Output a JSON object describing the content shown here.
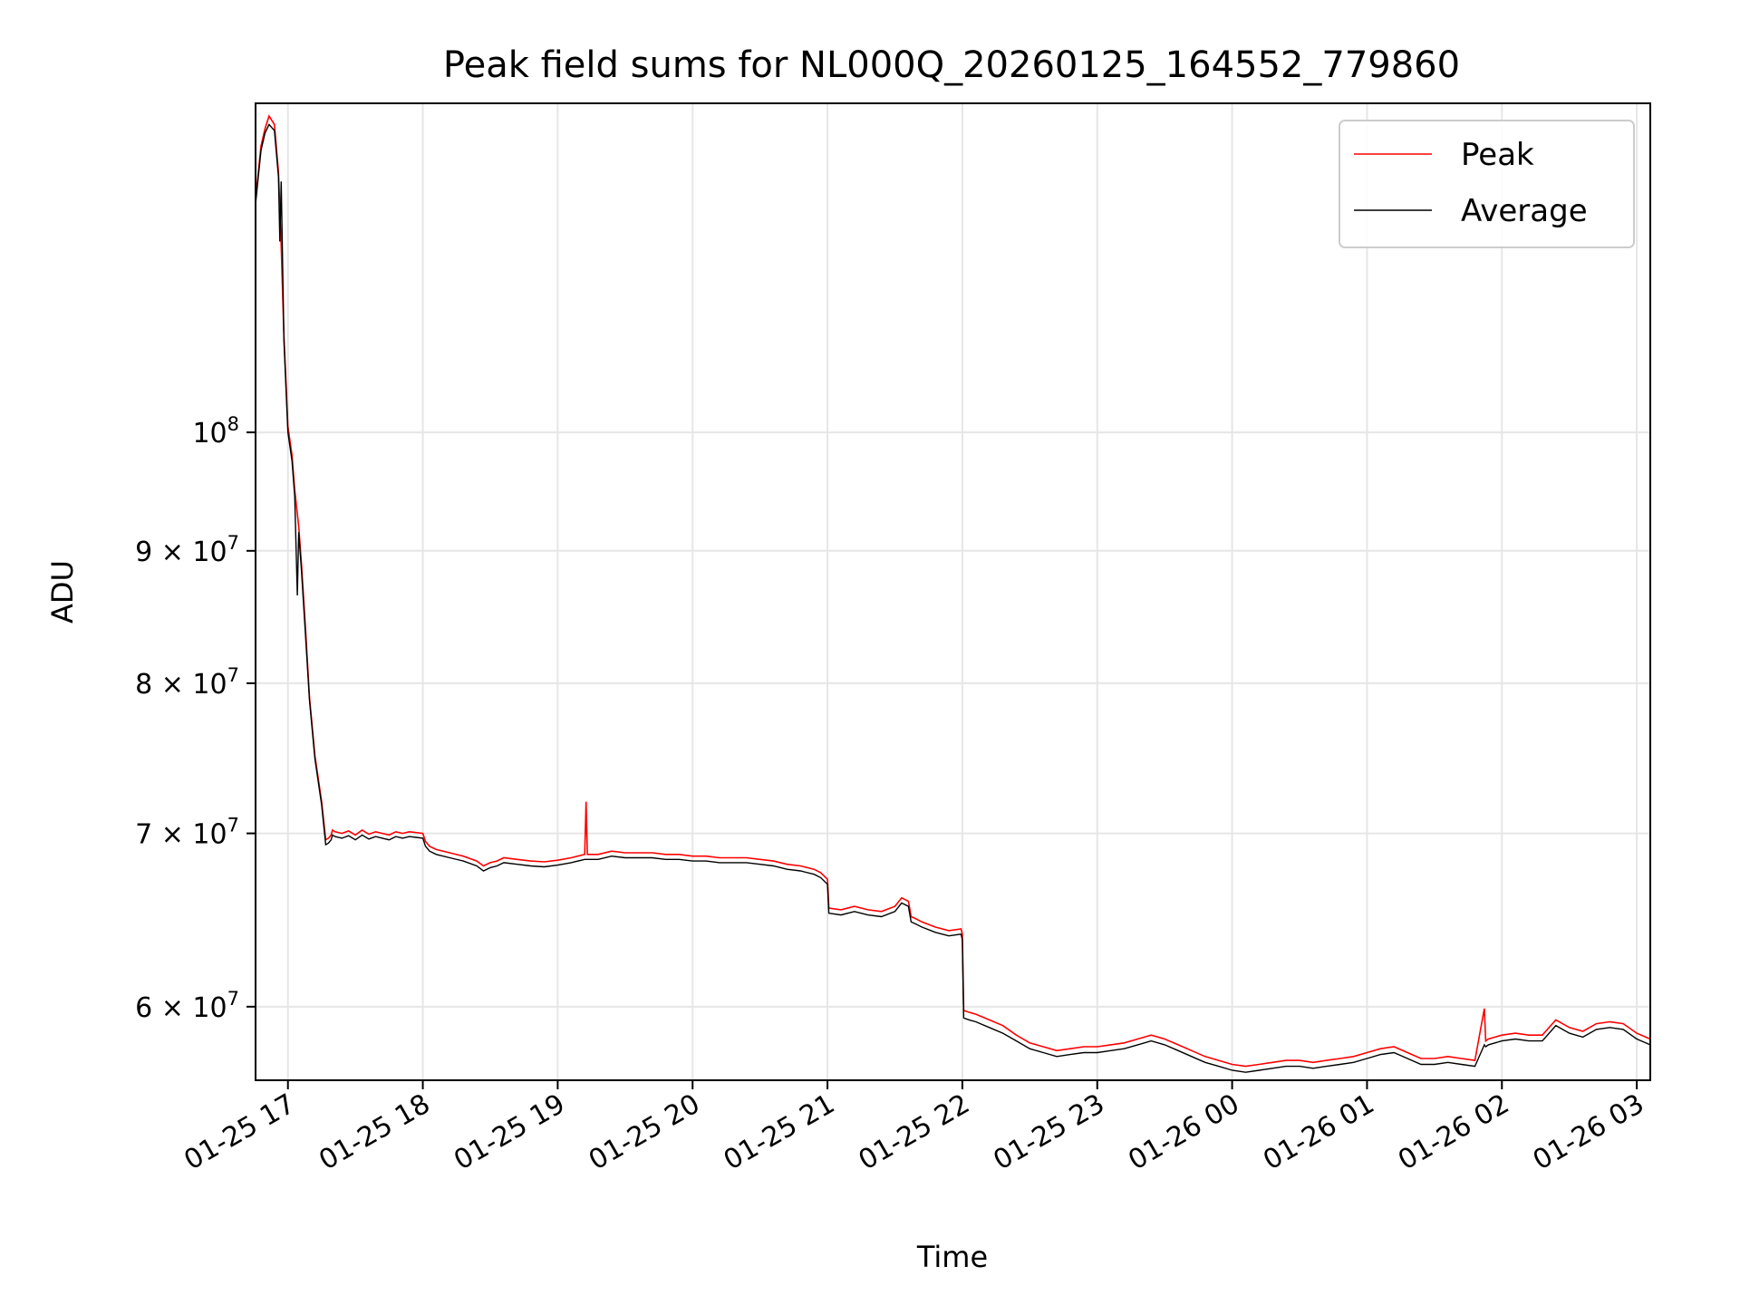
{
  "chart_data": {
    "type": "line",
    "title": "Peak field sums for NL000Q_20260125_164552_779860",
    "xlabel": "Time",
    "ylabel": "ADU",
    "yscale": "log",
    "grid": true,
    "legend_position": "upper right",
    "xlim": [
      16.76,
      27.1
    ],
    "ylim": [
      56200000,
      134000000
    ],
    "x_ticks": [
      {
        "value": 17,
        "label": "01-25 17"
      },
      {
        "value": 18,
        "label": "01-25 18"
      },
      {
        "value": 19,
        "label": "01-25 19"
      },
      {
        "value": 20,
        "label": "01-25 20"
      },
      {
        "value": 21,
        "label": "01-25 21"
      },
      {
        "value": 22,
        "label": "01-25 22"
      },
      {
        "value": 23,
        "label": "01-25 23"
      },
      {
        "value": 24,
        "label": "01-26 00"
      },
      {
        "value": 25,
        "label": "01-26 01"
      },
      {
        "value": 26,
        "label": "01-26 02"
      },
      {
        "value": 27,
        "label": "01-26 03"
      }
    ],
    "y_ticks": [
      {
        "value": 100000000,
        "base": "10",
        "exp": "8"
      },
      {
        "value": 90000000,
        "base": "9 × 10",
        "exp": "7"
      },
      {
        "value": 80000000,
        "base": "8 × 10",
        "exp": "7"
      },
      {
        "value": 70000000,
        "base": "7 × 10",
        "exp": "7"
      },
      {
        "value": 60000000,
        "base": "6 × 10",
        "exp": "7"
      }
    ],
    "series": [
      {
        "name": "Peak",
        "color": "#ff0000",
        "x": [
          16.76,
          16.78,
          16.8,
          16.83,
          16.86,
          16.9,
          16.93,
          16.95,
          16.97,
          17.0,
          17.03,
          17.05,
          17.08,
          17.1,
          17.13,
          17.16,
          17.2,
          17.25,
          17.28,
          17.3,
          17.32,
          17.33,
          17.35,
          17.4,
          17.45,
          17.5,
          17.55,
          17.6,
          17.65,
          17.7,
          17.75,
          17.8,
          17.85,
          17.9,
          17.95,
          18.0,
          18.02,
          18.05,
          18.1,
          18.2,
          18.3,
          18.4,
          18.45,
          18.5,
          18.55,
          18.6,
          18.7,
          18.8,
          18.9,
          19.0,
          19.1,
          19.2,
          19.21,
          19.22,
          19.3,
          19.4,
          19.5,
          19.6,
          19.7,
          19.8,
          19.9,
          20.0,
          20.1,
          20.2,
          20.3,
          20.4,
          20.5,
          20.6,
          20.7,
          20.8,
          20.9,
          20.95,
          21.0,
          21.01,
          21.1,
          21.2,
          21.3,
          21.4,
          21.5,
          21.55,
          21.6,
          21.62,
          21.65,
          21.7,
          21.8,
          21.9,
          21.99,
          22.0,
          22.01,
          22.05,
          22.1,
          22.2,
          22.3,
          22.4,
          22.5,
          22.6,
          22.7,
          22.8,
          22.9,
          23.0,
          23.1,
          23.2,
          23.3,
          23.4,
          23.5,
          23.6,
          23.7,
          23.8,
          23.9,
          24.0,
          24.1,
          24.2,
          24.3,
          24.4,
          24.5,
          24.6,
          24.7,
          24.8,
          24.9,
          25.0,
          25.1,
          25.2,
          25.3,
          25.4,
          25.5,
          25.6,
          25.7,
          25.8,
          25.87,
          25.88,
          25.9,
          26.0,
          26.1,
          26.2,
          26.3,
          26.4,
          26.5,
          26.6,
          26.7,
          26.8,
          26.9,
          27.0,
          27.1
        ],
        "values": [
          123000000,
          126000000,
          129000000,
          131000000,
          132500000,
          131500000,
          126000000,
          118000000,
          109000000,
          100500000,
          98000000,
          95000000,
          92000000,
          89000000,
          84000000,
          79000000,
          75000000,
          72000000,
          69600000,
          69700000,
          69900000,
          70200000,
          70100000,
          70000000,
          70150000,
          69900000,
          70200000,
          69950000,
          70100000,
          70000000,
          69900000,
          70100000,
          70000000,
          70100000,
          70050000,
          70000000,
          69500000,
          69200000,
          69000000,
          68800000,
          68600000,
          68300000,
          68000000,
          68200000,
          68300000,
          68500000,
          68400000,
          68300000,
          68250000,
          68350000,
          68500000,
          68700000,
          72000000,
          68700000,
          68700000,
          68900000,
          68800000,
          68800000,
          68800000,
          68700000,
          68700000,
          68600000,
          68600000,
          68500000,
          68500000,
          68500000,
          68400000,
          68300000,
          68100000,
          68000000,
          67800000,
          67600000,
          67200000,
          65500000,
          65400000,
          65600000,
          65400000,
          65300000,
          65600000,
          66100000,
          65900000,
          65000000,
          64900000,
          64700000,
          64400000,
          64200000,
          64300000,
          64000000,
          59800000,
          59700000,
          59600000,
          59300000,
          59000000,
          58500000,
          58100000,
          57900000,
          57700000,
          57800000,
          57900000,
          57900000,
          58000000,
          58100000,
          58300000,
          58500000,
          58300000,
          58000000,
          57700000,
          57400000,
          57200000,
          57000000,
          56900000,
          57000000,
          57100000,
          57200000,
          57200000,
          57100000,
          57200000,
          57300000,
          57400000,
          57600000,
          57800000,
          57900000,
          57600000,
          57300000,
          57300000,
          57400000,
          57300000,
          57200000,
          59900000,
          58200000,
          58300000,
          58500000,
          58600000,
          58500000,
          58500000,
          59300000,
          58900000,
          58700000,
          59100000,
          59200000,
          59100000,
          58600000,
          58300000
        ]
      },
      {
        "name": "Average",
        "color": "#000000",
        "x": [
          16.76,
          16.78,
          16.8,
          16.83,
          16.86,
          16.9,
          16.93,
          16.94,
          16.95,
          16.97,
          17.0,
          17.03,
          17.05,
          17.07,
          17.08,
          17.1,
          17.13,
          17.16,
          17.2,
          17.25,
          17.28,
          17.3,
          17.32,
          17.33,
          17.35,
          17.4,
          17.45,
          17.5,
          17.55,
          17.6,
          17.65,
          17.7,
          17.75,
          17.8,
          17.85,
          17.9,
          17.95,
          18.0,
          18.02,
          18.05,
          18.1,
          18.2,
          18.3,
          18.4,
          18.45,
          18.5,
          18.55,
          18.6,
          18.7,
          18.8,
          18.9,
          19.0,
          19.1,
          19.2,
          19.3,
          19.4,
          19.5,
          19.6,
          19.7,
          19.8,
          19.9,
          20.0,
          20.1,
          20.2,
          20.3,
          20.4,
          20.5,
          20.6,
          20.7,
          20.8,
          20.9,
          20.95,
          21.0,
          21.01,
          21.1,
          21.2,
          21.3,
          21.4,
          21.5,
          21.55,
          21.6,
          21.62,
          21.65,
          21.7,
          21.8,
          21.9,
          21.99,
          22.0,
          22.01,
          22.05,
          22.1,
          22.2,
          22.3,
          22.4,
          22.5,
          22.6,
          22.7,
          22.8,
          22.9,
          23.0,
          23.1,
          23.2,
          23.3,
          23.4,
          23.5,
          23.6,
          23.7,
          23.8,
          23.9,
          24.0,
          24.1,
          24.2,
          24.3,
          24.4,
          24.5,
          24.6,
          24.7,
          24.8,
          24.9,
          25.0,
          25.1,
          25.2,
          25.3,
          25.4,
          25.5,
          25.6,
          25.7,
          25.8,
          25.87,
          25.88,
          25.9,
          26.0,
          26.1,
          26.2,
          26.3,
          26.4,
          26.5,
          26.6,
          26.7,
          26.8,
          26.9,
          27.0,
          27.1
        ],
        "values": [
          122500000,
          125500000,
          128500000,
          130500000,
          131500000,
          130800000,
          125500000,
          118500000,
          125000000,
          108500000,
          100000000,
          97500000,
          94500000,
          86500000,
          91500000,
          88500000,
          83500000,
          78800000,
          74800000,
          71800000,
          69300000,
          69400000,
          69600000,
          69900000,
          69800000,
          69700000,
          69850000,
          69600000,
          69900000,
          69650000,
          69800000,
          69700000,
          69600000,
          69800000,
          69700000,
          69800000,
          69750000,
          69700000,
          69200000,
          68900000,
          68700000,
          68500000,
          68300000,
          68000000,
          67700000,
          67900000,
          68000000,
          68200000,
          68100000,
          68000000,
          67950000,
          68050000,
          68200000,
          68400000,
          68400000,
          68600000,
          68500000,
          68500000,
          68500000,
          68400000,
          68400000,
          68300000,
          68300000,
          68200000,
          68200000,
          68200000,
          68100000,
          68000000,
          67800000,
          67700000,
          67500000,
          67300000,
          66900000,
          65200000,
          65100000,
          65300000,
          65100000,
          65000000,
          65300000,
          65800000,
          65600000,
          64700000,
          64600000,
          64400000,
          64100000,
          63900000,
          64000000,
          63700000,
          59400000,
          59300000,
          59200000,
          58900000,
          58600000,
          58200000,
          57800000,
          57600000,
          57400000,
          57500000,
          57600000,
          57600000,
          57700000,
          57800000,
          58000000,
          58200000,
          58000000,
          57700000,
          57400000,
          57100000,
          56900000,
          56700000,
          56600000,
          56700000,
          56800000,
          56900000,
          56900000,
          56800000,
          56900000,
          57000000,
          57100000,
          57300000,
          57500000,
          57600000,
          57300000,
          57000000,
          57000000,
          57100000,
          57000000,
          56900000,
          58000000,
          57900000,
          58000000,
          58200000,
          58300000,
          58200000,
          58200000,
          59000000,
          58600000,
          58400000,
          58800000,
          58900000,
          58800000,
          58300000,
          58000000
        ]
      }
    ]
  }
}
